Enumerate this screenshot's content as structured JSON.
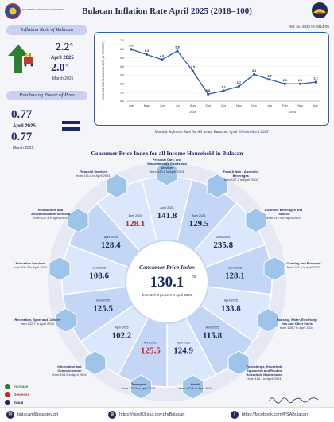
{
  "header": {
    "title": "Bulacan Inflation Rate April 2025 (2018=100)",
    "agency_logo_text": "PHILIPPINE STATISTICS AUTHORITY",
    "ref_no": "Ref. no. 2025 IG-0314-05"
  },
  "left_panel": {
    "inflation_heading": "Inflation Rate of Bulacan",
    "rate_current": "2.2",
    "rate_current_sup": "%",
    "rate_current_period": "April 2025",
    "rate_previous": "2.0",
    "rate_previous_sup": "%",
    "rate_previous_period": "March 2025",
    "pp_heading": "Purchasing Power of Peso",
    "pp_current": "0.77",
    "pp_current_period": "April 2025",
    "pp_previous": "0.77",
    "pp_previous_period": "March 2025"
  },
  "chart_data": {
    "type": "line",
    "ylabel": "YEAR-ON-YEAR INFLATION RATE (IN PERCENT)",
    "ylim": [
      0,
      7
    ],
    "yticks": [
      "0.0",
      "1.0",
      "2.0",
      "3.0",
      "4.0",
      "5.0",
      "6.0",
      "7.0"
    ],
    "categories": [
      "Apr",
      "May",
      "Jun",
      "Jul",
      "Aug",
      "Sep",
      "Oct",
      "Nov",
      "Dec",
      "Jan",
      "Feb",
      "Mar",
      "Apr"
    ],
    "values": [
      6.0,
      5.4,
      4.8,
      5.8,
      3.5,
      0.8,
      1.2,
      1.7,
      3.1,
      2.5,
      2.0,
      2.0,
      2.2
    ],
    "value_labels": [
      "6.0",
      "5.4",
      "4.8",
      "5.8",
      "3.5",
      "0.8",
      "1.2",
      "1.7",
      "3.1",
      "2.5",
      "2.0",
      "2.0",
      "2.2"
    ],
    "year_labels": [
      "2024",
      "2025"
    ],
    "caption": "Monthly Inflation Rate for All Items, Bulacan: April 2024 to April 2025",
    "line_color": "#2c5fb4"
  },
  "cpi": {
    "section_title": "Consumer Price Index for all Income Household in Bulacan",
    "center_title": "Consumer Price Index",
    "center_value": "130.1",
    "center_sup": "%",
    "center_from_prefix": "from",
    "center_from_value": "127.3",
    "center_from_suffix": "percent in April 2024",
    "month_label": "April 2025",
    "segments": [
      {
        "name": "Personal Care, and Miscellaneous Goods and Services",
        "value": "141.8",
        "from": "from 123.1 in April 2024",
        "trend": "increase"
      },
      {
        "name": "Food & Non - Alcoholic Beverages",
        "value": "129.5",
        "from": "from 127.2 in April 2024",
        "trend": "increase"
      },
      {
        "name": "Alcoholic Beverages and Tobacco",
        "value": "235.8",
        "from": "from 217.8 in April 2024",
        "trend": "increase"
      },
      {
        "name": "Clothing and Footwear",
        "value": "128.1",
        "from": "from 126.5 in April 2024",
        "trend": "increase"
      },
      {
        "name": "Housing, Water, Electricity, Gas and Other Fuels",
        "value": "133.8",
        "from": "from 126.7 in April 2024",
        "trend": "increase"
      },
      {
        "name": "Furnishings, Household Equipment and Routine Household Maintenance",
        "value": "115.8",
        "from": "from 114.7 in April 2024",
        "trend": "increase"
      },
      {
        "name": "Health",
        "value": "124.9",
        "from": "from 122.6 in April 2024",
        "trend": "increase"
      },
      {
        "name": "Transport",
        "value": "125.5",
        "from": "from 128.3 in April 2024",
        "trend": "decrease"
      },
      {
        "name": "Information and Communication",
        "value": "102.2",
        "from": "from 101.9 in April 2024",
        "trend": "increase"
      },
      {
        "name": "Recreation, Sport and Culture",
        "value": "125.5",
        "from": "from 122.7 in April 2024",
        "trend": "increase"
      },
      {
        "name": "Education Services",
        "value": "108.6",
        "from": "from 106.3 in April 2024",
        "trend": "increase"
      },
      {
        "name": "Restaurants and Accommodation Services",
        "value": "128.4",
        "from": "from 127.4 in April 2024",
        "trend": "increase"
      },
      {
        "name": "Financial Services",
        "value": "128.1",
        "from": "from 141.8 in April 2024",
        "trend": "decrease"
      }
    ]
  },
  "legend": {
    "increase": "Increase",
    "decrease": "Decrease",
    "equal": "Equal",
    "increase_color": "#2e7d32",
    "decrease_color": "#c62828",
    "equal_color": "#1c2a5e"
  },
  "footer": {
    "email": "bulacan@psa.gov.ph",
    "website": "https://rsso03.psa.gov.ph/Bulacan",
    "facebook": "https://facebook.com/PSABulacan"
  }
}
